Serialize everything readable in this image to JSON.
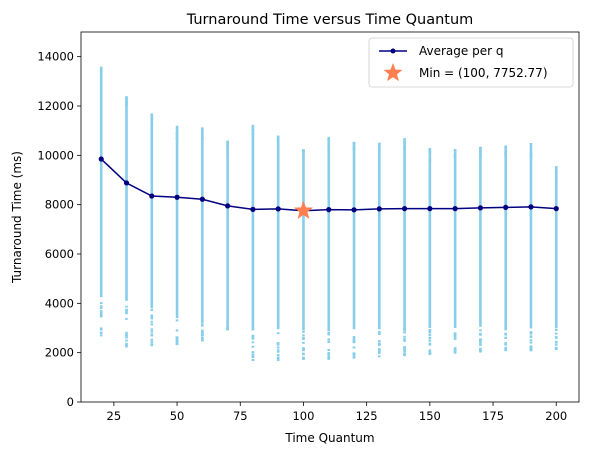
{
  "chart_data": {
    "type": "scatter",
    "title": "Turnaround Time versus Time Quantum",
    "xlabel": "Time Quantum",
    "ylabel": "Turnaround Time (ms)",
    "xlim": [
      12,
      209
    ],
    "ylim": [
      0,
      15000
    ],
    "x_ticks": [
      25,
      50,
      75,
      100,
      125,
      150,
      175,
      200
    ],
    "y_ticks": [
      0,
      2000,
      4000,
      6000,
      8000,
      10000,
      12000,
      14000
    ],
    "grid": false,
    "legend_position": "top-right",
    "colors": {
      "scatter": "#87ceeb",
      "average_line": "#000080",
      "min_marker": "#ff7f50"
    },
    "scatter_ranges": [
      {
        "x": 20,
        "min": 2700,
        "max": 13600,
        "dense_min": 4300
      },
      {
        "x": 30,
        "min": 2250,
        "max": 12400,
        "dense_min": 4100
      },
      {
        "x": 40,
        "min": 2300,
        "max": 11700,
        "dense_min": 3800
      },
      {
        "x": 50,
        "min": 2350,
        "max": 11200,
        "dense_min": 3400
      },
      {
        "x": 60,
        "min": 2500,
        "max": 11100,
        "dense_min": 3200
      },
      {
        "x": 70,
        "min": 2950,
        "max": 10600,
        "dense_min": 3000
      },
      {
        "x": 80,
        "min": 1700,
        "max": 11200,
        "dense_min": 2950
      },
      {
        "x": 90,
        "min": 1700,
        "max": 10800,
        "dense_min": 2950
      },
      {
        "x": 100,
        "min": 1750,
        "max": 10250,
        "dense_min": 2900
      },
      {
        "x": 110,
        "min": 1750,
        "max": 10750,
        "dense_min": 2950
      },
      {
        "x": 120,
        "min": 1800,
        "max": 10550,
        "dense_min": 2950
      },
      {
        "x": 130,
        "min": 1850,
        "max": 10500,
        "dense_min": 2950
      },
      {
        "x": 140,
        "min": 1900,
        "max": 10700,
        "dense_min": 3000
      },
      {
        "x": 150,
        "min": 1950,
        "max": 10300,
        "dense_min": 3000
      },
      {
        "x": 160,
        "min": 2000,
        "max": 10250,
        "dense_min": 3000
      },
      {
        "x": 170,
        "min": 2050,
        "max": 10350,
        "dense_min": 3050
      },
      {
        "x": 180,
        "min": 2100,
        "max": 10400,
        "dense_min": 3050
      },
      {
        "x": 190,
        "min": 2100,
        "max": 10500,
        "dense_min": 3050
      },
      {
        "x": 200,
        "min": 2150,
        "max": 9550,
        "dense_min": 3050
      }
    ],
    "series": [
      {
        "name": "Average per q",
        "x": [
          20,
          30,
          40,
          50,
          60,
          70,
          80,
          90,
          100,
          110,
          120,
          130,
          140,
          150,
          160,
          170,
          180,
          190,
          200
        ],
        "y": [
          9850,
          8880,
          8350,
          8300,
          8220,
          7950,
          7810,
          7830,
          7752.77,
          7800,
          7790,
          7830,
          7840,
          7840,
          7840,
          7870,
          7890,
          7910,
          7840
        ]
      }
    ],
    "min_point": {
      "label": "Min = (100, 7752.77)",
      "x": 100,
      "y": 7752.77
    }
  }
}
